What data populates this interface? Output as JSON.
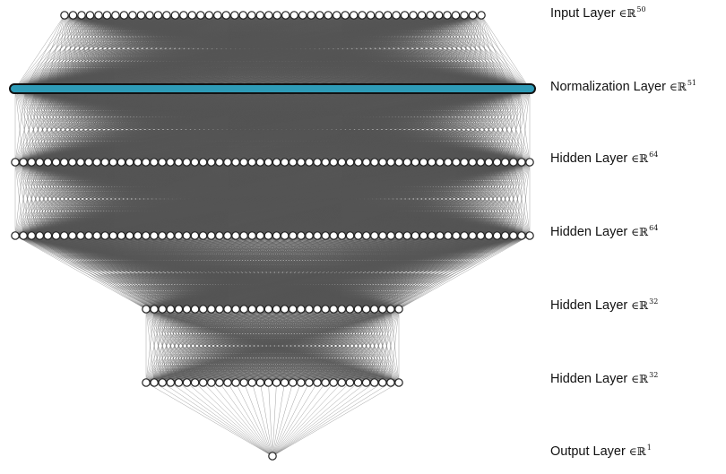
{
  "network": {
    "node_color": "#ffffff",
    "node_stroke": "#222222",
    "edge_color": "#555555",
    "highlight_color": "#2e9bb7",
    "layers": [
      {
        "name": "Input Layer",
        "symbol": "∈ℝ",
        "dim": "50",
        "units": 50
      },
      {
        "name": "Normalization Layer",
        "symbol": "∈ℝ",
        "dim": "51",
        "units": 51,
        "highlighted": true
      },
      {
        "name": "Hidden Layer",
        "symbol": "∈ℝ",
        "dim": "64",
        "units": 64
      },
      {
        "name": "Hidden Layer",
        "symbol": "∈ℝ",
        "dim": "64",
        "units": 64
      },
      {
        "name": "Hidden Layer",
        "symbol": "∈ℝ",
        "dim": "32",
        "units": 32
      },
      {
        "name": "Hidden Layer",
        "symbol": "∈ℝ",
        "dim": "32",
        "units": 32
      },
      {
        "name": "Output Layer",
        "symbol": "∈ℝ",
        "dim": "1",
        "units": 1
      }
    ]
  }
}
